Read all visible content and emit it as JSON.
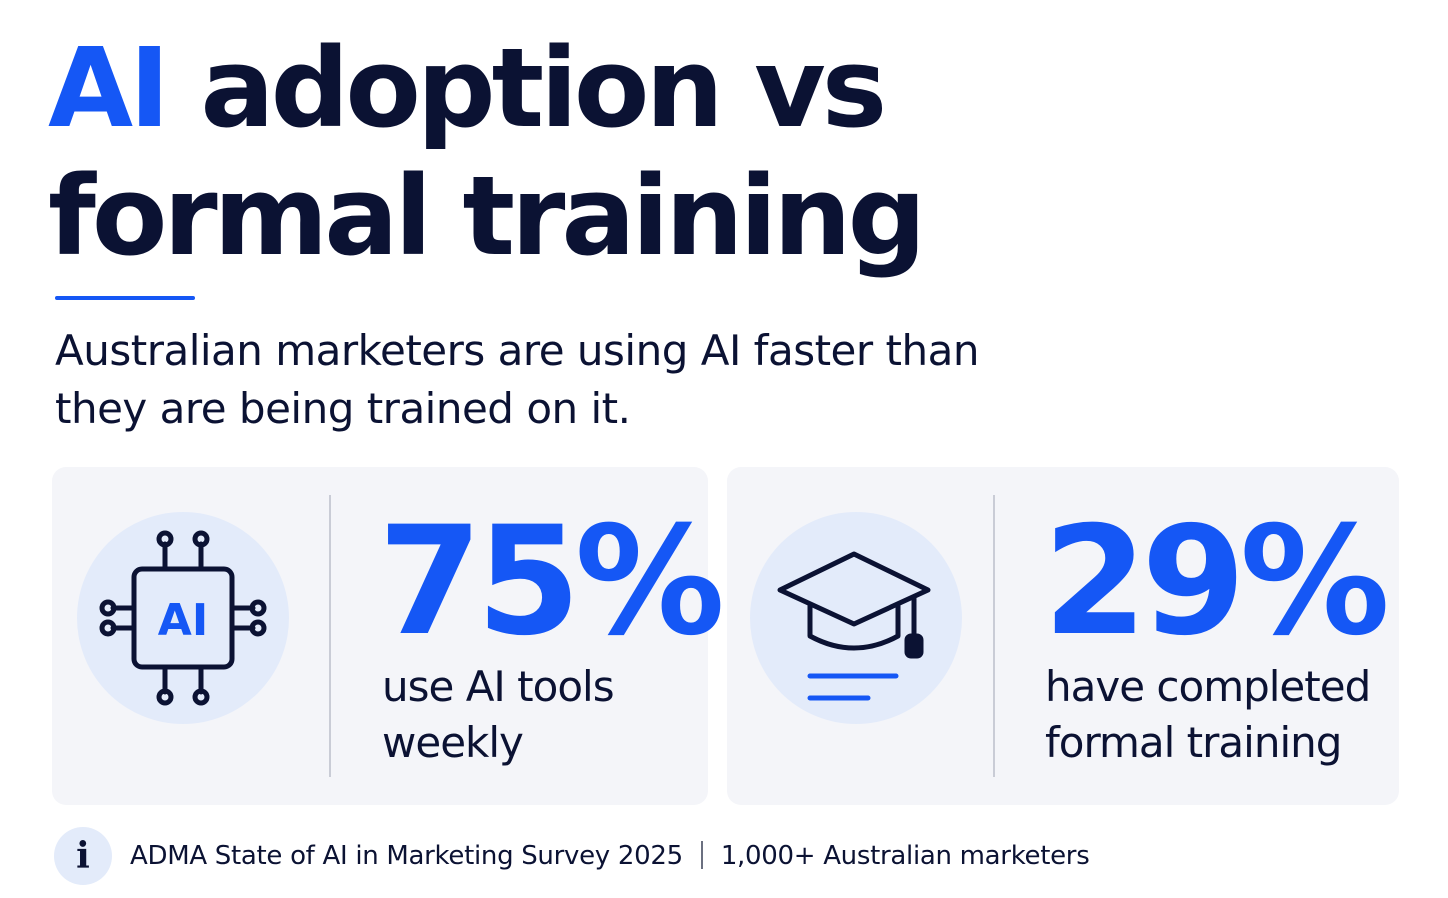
{
  "header": {
    "title_accent": "AI",
    "title_line1_rest": " adoption vs",
    "title_line2": "formal training",
    "subtitle": "Australian marketers are using AI faster than they are being trained on it."
  },
  "stats": [
    {
      "icon": "ai-chip-icon",
      "value": "75%",
      "label": "use AI tools\nweekly"
    },
    {
      "icon": "graduation-cap-icon",
      "value": "29%",
      "label": "have completed\nformal training"
    }
  ],
  "footer": {
    "icon": "info-icon",
    "icon_glyph": "i",
    "source": "ADMA State of AI in Marketing Survey 2025",
    "sample": "1,000+ Australian marketers"
  },
  "colors": {
    "accent": "#1557f5",
    "text": "#0b1233",
    "card_bg": "#f4f5f9",
    "icon_circle": "#e3ebfa"
  }
}
